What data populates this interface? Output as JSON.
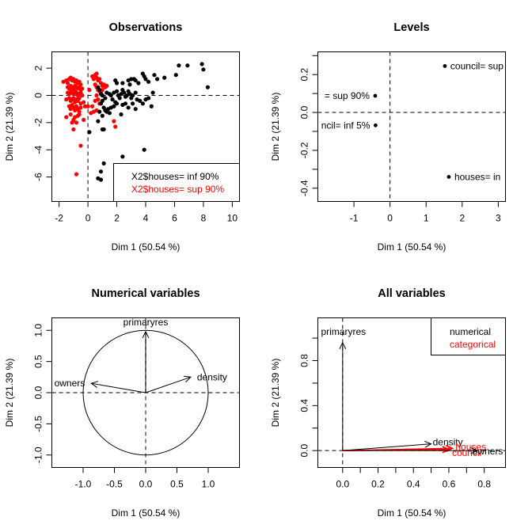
{
  "figure": {
    "layout": "2x2 grid of FactoMineR FAMD plots"
  },
  "chart_data": [
    {
      "id": "observations",
      "type": "scatter",
      "title": "Observations",
      "xlabel": "Dim 1 (50.54 %)",
      "ylabel": "Dim 2 (21.39 %)",
      "xlim": [
        -2.5,
        10.5
      ],
      "ylim": [
        -7.8,
        3.2
      ],
      "xticks": [
        -2,
        0,
        2,
        4,
        6,
        8,
        10
      ],
      "yticks": [
        2,
        0,
        -2,
        -4,
        -6
      ],
      "reference_lines": {
        "x": 0,
        "y": 0,
        "style": "dashed"
      },
      "legend": {
        "position": "bottom-right",
        "entries": [
          {
            "label": "X2$houses= inf 90%",
            "color": "#000000"
          },
          {
            "label": "X2$houses= sup 90%",
            "color": "#ff0000"
          }
        ]
      },
      "series": [
        {
          "name": "X2$houses= sup 90%",
          "color": "#ff0000",
          "points": [
            [
              -1.7,
              1.0
            ],
            [
              -1.5,
              1.1
            ],
            [
              -1.4,
              0.9
            ],
            [
              -1.3,
              1.2
            ],
            [
              -1.2,
              1.3
            ],
            [
              -1.1,
              1.1
            ],
            [
              -1.0,
              1.2
            ],
            [
              -0.9,
              1.0
            ],
            [
              -0.8,
              1.1
            ],
            [
              -0.7,
              0.9
            ],
            [
              -0.6,
              1.0
            ],
            [
              -0.5,
              0.8
            ],
            [
              -1.4,
              0.6
            ],
            [
              -1.3,
              0.5
            ],
            [
              -1.2,
              0.7
            ],
            [
              -1.1,
              0.6
            ],
            [
              -1.0,
              0.5
            ],
            [
              -0.9,
              0.7
            ],
            [
              -0.8,
              0.6
            ],
            [
              -0.7,
              0.5
            ],
            [
              -0.6,
              0.6
            ],
            [
              -0.5,
              0.4
            ],
            [
              -0.4,
              0.5
            ],
            [
              -1.4,
              0.2
            ],
            [
              -1.3,
              0.1
            ],
            [
              -1.2,
              0.3
            ],
            [
              -1.1,
              0.2
            ],
            [
              -1.0,
              0.1
            ],
            [
              -0.9,
              0.3
            ],
            [
              -0.8,
              0.2
            ],
            [
              -0.7,
              0.0
            ],
            [
              -0.6,
              0.1
            ],
            [
              -0.5,
              0.2
            ],
            [
              -0.4,
              0.0
            ],
            [
              -1.5,
              -0.3
            ],
            [
              -1.3,
              -0.2
            ],
            [
              -1.2,
              -0.4
            ],
            [
              -1.1,
              -0.3
            ],
            [
              -1.0,
              -0.2
            ],
            [
              -0.9,
              -0.5
            ],
            [
              -0.8,
              -0.3
            ],
            [
              -0.7,
              -0.4
            ],
            [
              -0.6,
              -0.2
            ],
            [
              -0.5,
              -0.6
            ],
            [
              -0.3,
              -0.5
            ],
            [
              -1.3,
              -0.8
            ],
            [
              -1.2,
              -1.0
            ],
            [
              -1.1,
              -0.7
            ],
            [
              -1.0,
              -0.9
            ],
            [
              -0.9,
              -1.1
            ],
            [
              -0.8,
              -0.8
            ],
            [
              -0.7,
              -1.0
            ],
            [
              -0.6,
              -1.2
            ],
            [
              -0.5,
              -0.9
            ],
            [
              -1.5,
              -1.6
            ],
            [
              -1.2,
              -1.4
            ],
            [
              -1.0,
              -1.8
            ],
            [
              -0.9,
              -1.6
            ],
            [
              -0.8,
              -2.0
            ],
            [
              -0.7,
              -1.5
            ],
            [
              -0.6,
              -1.4
            ],
            [
              -0.3,
              -1.8
            ],
            [
              -1.0,
              -2.5
            ],
            [
              -1.1,
              -2.0
            ],
            [
              -0.5,
              -3.7
            ],
            [
              -0.8,
              -5.8
            ],
            [
              0.1,
              0.4
            ],
            [
              0.0,
              -0.8
            ],
            [
              -0.2,
              -0.8
            ],
            [
              0.3,
              -0.8
            ],
            [
              0.3,
              1.4
            ],
            [
              0.4,
              1.2
            ],
            [
              0.5,
              1.5
            ],
            [
              0.6,
              1.6
            ],
            [
              0.6,
              1.3
            ],
            [
              0.7,
              1.1
            ],
            [
              0.8,
              1.2
            ],
            [
              0.9,
              0.9
            ],
            [
              1.0,
              0.7
            ],
            [
              1.1,
              0.8
            ],
            [
              1.2,
              0.6
            ],
            [
              1.3,
              0.7
            ],
            [
              0.5,
              0.8
            ],
            [
              0.6,
              0.6
            ],
            [
              0.7,
              0.4
            ],
            [
              0.8,
              0.3
            ],
            [
              0.9,
              0.2
            ],
            [
              1.0,
              0.4
            ],
            [
              0.6,
              0.0
            ],
            [
              0.7,
              -0.3
            ],
            [
              0.5,
              -0.4
            ],
            [
              0.8,
              -0.6
            ],
            [
              0.4,
              -1.2
            ],
            [
              0.6,
              -1.1
            ],
            [
              0.2,
              -1.3
            ],
            [
              1.8,
              -1.9
            ],
            [
              1.9,
              -2.3
            ]
          ]
        },
        {
          "name": "X2$houses= inf 90%",
          "color": "#000000",
          "points": [
            [
              0.7,
              0.6
            ],
            [
              0.8,
              0.4
            ],
            [
              0.9,
              0.1
            ],
            [
              1.0,
              0.0
            ],
            [
              0.9,
              -0.6
            ],
            [
              1.0,
              -0.4
            ],
            [
              1.2,
              -0.2
            ],
            [
              1.3,
              0.2
            ],
            [
              1.1,
              -0.9
            ],
            [
              0.8,
              -1.2
            ],
            [
              1.2,
              -1.1
            ],
            [
              1.4,
              -1.0
            ],
            [
              1.6,
              -0.9
            ],
            [
              1.8,
              -0.8
            ],
            [
              1.5,
              0.1
            ],
            [
              1.6,
              0.0
            ],
            [
              1.7,
              -0.3
            ],
            [
              1.8,
              0.2
            ],
            [
              1.9,
              -0.5
            ],
            [
              2.0,
              -0.6
            ],
            [
              2.0,
              0.3
            ],
            [
              2.1,
              0.0
            ],
            [
              2.2,
              -0.2
            ],
            [
              2.3,
              0.1
            ],
            [
              2.4,
              0.4
            ],
            [
              2.5,
              0.2
            ],
            [
              2.6,
              -0.1
            ],
            [
              2.7,
              0.0
            ],
            [
              2.8,
              0.3
            ],
            [
              2.9,
              0.1
            ],
            [
              3.0,
              -0.2
            ],
            [
              3.1,
              0.0
            ],
            [
              3.3,
              0.2
            ],
            [
              3.4,
              -0.3
            ],
            [
              3.6,
              -0.4
            ],
            [
              3.8,
              -0.6
            ],
            [
              4.0,
              -0.3
            ],
            [
              4.2,
              -0.2
            ],
            [
              4.4,
              -0.8
            ],
            [
              4.5,
              0.2
            ],
            [
              1.9,
              1.1
            ],
            [
              2.0,
              0.9
            ],
            [
              2.4,
              0.9
            ],
            [
              2.8,
              1.1
            ],
            [
              2.9,
              0.8
            ],
            [
              3.0,
              1.2
            ],
            [
              3.2,
              1.2
            ],
            [
              3.3,
              1.1
            ],
            [
              3.5,
              0.9
            ],
            [
              3.8,
              1.6
            ],
            [
              3.9,
              1.4
            ],
            [
              4.0,
              1.2
            ],
            [
              4.2,
              1.0
            ],
            [
              4.6,
              1.5
            ],
            [
              4.8,
              1.2
            ],
            [
              5.3,
              1.3
            ],
            [
              6.1,
              1.5
            ],
            [
              6.3,
              2.2
            ],
            [
              6.9,
              2.2
            ],
            [
              7.9,
              2.3
            ],
            [
              8.0,
              1.9
            ],
            [
              8.3,
              0.6
            ],
            [
              2.4,
              -0.7
            ],
            [
              2.6,
              -0.6
            ],
            [
              2.8,
              -0.9
            ],
            [
              3.1,
              -0.6
            ],
            [
              3.3,
              -1.0
            ],
            [
              2.3,
              -1.4
            ],
            [
              1.5,
              -1.3
            ],
            [
              1.3,
              -1.2
            ],
            [
              1.0,
              -1.5
            ],
            [
              0.7,
              -1.9
            ],
            [
              1.0,
              -2.5
            ],
            [
              1.1,
              -2.5
            ],
            [
              0.1,
              -2.7
            ],
            [
              2.4,
              -4.5
            ],
            [
              3.9,
              -4.0
            ],
            [
              1.1,
              -5.0
            ],
            [
              0.9,
              -5.6
            ],
            [
              0.7,
              -6.1
            ],
            [
              0.9,
              -6.2
            ]
          ]
        }
      ]
    },
    {
      "id": "levels",
      "type": "scatter",
      "title": "Levels",
      "xlabel": "Dim 1 (50.54 %)",
      "ylabel": "Dim 2 (21.39 %)",
      "xlim": [
        -2.0,
        3.2
      ],
      "ylim": [
        -0.47,
        0.32
      ],
      "xticks": [
        -1,
        0,
        1,
        2,
        3
      ],
      "yticks": [
        0.3,
        0.2,
        0.1,
        0.0,
        -0.1,
        -0.2,
        -0.3,
        -0.4
      ],
      "ytick_labels": [
        "",
        "0.2",
        "",
        "0.0",
        "",
        "-0.2",
        "",
        "-0.4"
      ],
      "reference_lines": {
        "x": 0,
        "y": 0,
        "style": "dashed"
      },
      "points": [
        {
          "x": 1.52,
          "y": 0.245,
          "label": "council= sup",
          "label_side": "right"
        },
        {
          "x": -0.41,
          "y": 0.088,
          "label": "= sup 90%",
          "label_side": "left"
        },
        {
          "x": -0.4,
          "y": -0.068,
          "label": "ncil= inf 5%",
          "label_side": "left"
        },
        {
          "x": 1.63,
          "y": -0.34,
          "label": "houses= in",
          "label_side": "right"
        }
      ]
    },
    {
      "id": "numerical",
      "type": "line",
      "subtype": "correlation-circle",
      "title": "Numerical variables",
      "xlabel": "Dim 1 (50.54 %)",
      "ylabel": "Dim 2 (21.39 %)",
      "xlim": [
        -1.5,
        1.5
      ],
      "ylim": [
        -1.2,
        1.2
      ],
      "xticks": [
        -1.0,
        -0.5,
        0.0,
        0.5,
        1.0
      ],
      "xtick_labels": [
        "-1.0",
        "-0.5",
        "0.0",
        "0.5",
        "1.0"
      ],
      "yticks": [
        1.0,
        0.5,
        0.0,
        -0.5,
        -1.0
      ],
      "ytick_labels": [
        "1.0",
        "0.5",
        "0.0",
        "-0.5",
        "-1.0"
      ],
      "circle_radius": 1.0,
      "reference_lines": {
        "x": 0,
        "y": 0,
        "style": "dashed"
      },
      "arrows": [
        {
          "name": "primaryres",
          "x": 0.0,
          "y": 0.98,
          "color": "#000000"
        },
        {
          "name": "density",
          "x": 0.72,
          "y": 0.25,
          "color": "#000000"
        },
        {
          "name": "owners",
          "x": -0.87,
          "y": 0.15,
          "color": "#000000"
        }
      ]
    },
    {
      "id": "allvars",
      "type": "line",
      "subtype": "arrow-plot",
      "title": "All variables",
      "xlabel": "Dim 1 (50.54 %)",
      "ylabel": "Dim 2 (21.39 %)",
      "xlim": [
        -0.14,
        0.92
      ],
      "ylim": [
        -0.15,
        1.18
      ],
      "xticks": [
        0.0,
        0.1,
        0.2,
        0.3,
        0.4,
        0.5,
        0.6,
        0.7,
        0.8
      ],
      "xtick_labels": [
        "0.0",
        "",
        "0.2",
        "",
        "0.4",
        "",
        "0.6",
        "",
        "0.8"
      ],
      "yticks": [
        0.0,
        0.2,
        0.4,
        0.6,
        0.8,
        1.0
      ],
      "ytick_labels": [
        "0.0",
        "",
        "0.4",
        "",
        "0.8",
        ""
      ],
      "reference_lines": {
        "x": 0,
        "y": 0,
        "style": "dashed"
      },
      "legend": {
        "position": "top-right",
        "entries": [
          {
            "label": "numerical",
            "color": "#000000"
          },
          {
            "label": "categorical",
            "color": "#ff0000"
          }
        ]
      },
      "arrows": [
        {
          "name": "primaryres",
          "x": 0.0,
          "y": 0.96,
          "color": "#000000"
        },
        {
          "name": "density",
          "x": 0.5,
          "y": 0.06,
          "color": "#000000"
        },
        {
          "name": "houses",
          "x": 0.62,
          "y": 0.02,
          "color": "#ff0000"
        },
        {
          "name": "council",
          "x": 0.6,
          "y": 0.01,
          "color": "#ff0000"
        },
        {
          "name": "owners",
          "x": 0.76,
          "y": 0.0,
          "color": "#000000"
        }
      ]
    }
  ]
}
